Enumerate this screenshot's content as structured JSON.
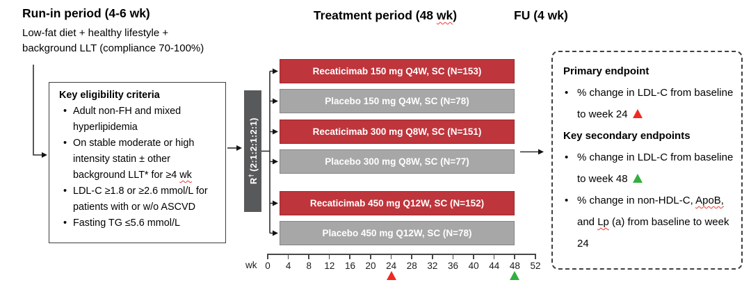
{
  "colors": {
    "active_arm": "#BF353C",
    "placebo_arm": "#A7A7A7",
    "randomization_bar": "#58595B",
    "marker_red": "#EE2A23",
    "marker_green": "#33AF3F",
    "wavy_underline": "#E8392F"
  },
  "header": {
    "run_in_title": "Run-in period (4-6 wk)",
    "run_in_lines": [
      "Low-fat diet + healthy lifestyle +",
      "background LLT (compliance 70-100%)"
    ],
    "treatment_title": {
      "pre": "Treatment period (48 ",
      "wavy": "wk",
      "post": ")"
    },
    "fu_title": "FU (4 wk)"
  },
  "eligibility": {
    "title": "Key eligibility criteria",
    "bullets": [
      [
        {
          "t": "Adult non-FH and mixed hyperlipidemia"
        }
      ],
      [
        {
          "t": "On stable moderate or high intensity statin ± other background LLT* for ≥4 "
        },
        {
          "t": "wk",
          "w": true
        }
      ],
      [
        {
          "t": "LDL-C ≥1.8 or ≥2.6 mmol/L for patients with or w/o ASCVD"
        }
      ],
      [
        {
          "t": "Fasting TG ≤5.6 mmol/L"
        }
      ]
    ]
  },
  "randomization": {
    "label": "R",
    "sup": "†",
    "ratio": "(2:1:2:1:2:1)"
  },
  "arms": [
    {
      "label": "Recaticimab 150 mg Q4W, SC (N=153)",
      "type": "active"
    },
    {
      "label": "Placebo 150 mg Q4W, SC (N=78)",
      "type": "placebo"
    },
    {
      "label": "Recaticimab 300 mg Q8W, SC (N=151)",
      "type": "active"
    },
    {
      "label": "Placebo 300 mg Q8W, SC (N=77)",
      "type": "placebo"
    },
    {
      "label": "Recaticimab 450 mg Q12W, SC (N=152)",
      "type": "active"
    },
    {
      "label": "Placebo 450 mg Q12W, SC (N=78)",
      "type": "placebo"
    }
  ],
  "axis": {
    "unit": "wk",
    "ticks": [
      "0",
      "4",
      "8",
      "12",
      "16",
      "20",
      "24",
      "28",
      "32",
      "36",
      "40",
      "44",
      "48",
      "52"
    ],
    "red_marker_week": "24",
    "green_marker_week": "48"
  },
  "endpoints": {
    "primary_heading": "Primary endpoint",
    "primary_bullet": [
      {
        "t": "% change in LDL-C from baseline to week 24 "
      },
      {
        "tri": "red"
      }
    ],
    "secondary_heading": "Key secondary endpoints",
    "secondary_bullet_1": [
      {
        "t": "% change in LDL-C from baseline to week 48 "
      },
      {
        "tri": "green"
      }
    ],
    "secondary_bullet_2": [
      {
        "t": "% change in non-HDL-C, "
      },
      {
        "t": "ApoB,",
        "w": true
      },
      {
        "t": " and "
      },
      {
        "t": "Lp",
        "w": true
      },
      {
        "t": " (a) from baseline to week 24"
      }
    ]
  }
}
